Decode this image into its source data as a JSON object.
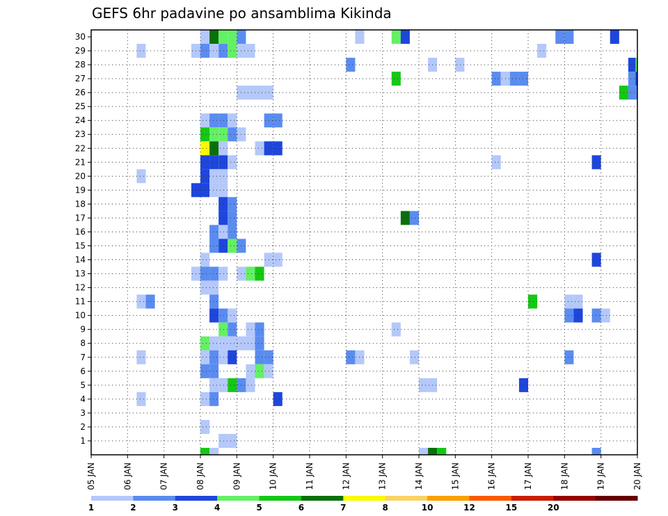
{
  "chart_data": {
    "type": "heatmap",
    "title": "GEFS 6hr padavine po ansamblima Kikinda",
    "xlabel": "",
    "ylabel": "",
    "x_tick_labels": [
      "05 JAN",
      "06 JAN",
      "07 JAN",
      "08 JAN",
      "09 JAN",
      "10 JAN",
      "11 JAN",
      "12 JAN",
      "13 JAN",
      "14 JAN",
      "15 JAN",
      "16 JAN",
      "17 JAN",
      "18 JAN",
      "19 JAN",
      "20 JAN"
    ],
    "y_tick_labels": [
      "1",
      "2",
      "3",
      "4",
      "5",
      "6",
      "7",
      "8",
      "9",
      "10",
      "11",
      "12",
      "13",
      "14",
      "15",
      "16",
      "17",
      "18",
      "19",
      "20",
      "21",
      "22",
      "23",
      "24",
      "25",
      "26",
      "27",
      "28",
      "29",
      "30"
    ],
    "members": [
      0,
      1,
      2,
      3,
      4,
      5,
      6,
      7,
      8,
      9,
      10,
      11,
      12,
      13,
      14,
      15,
      16,
      17,
      18,
      19,
      20,
      21,
      22,
      23,
      24,
      25,
      26,
      27,
      28,
      29,
      30
    ],
    "x_range_days": [
      0,
      15
    ],
    "grid": true,
    "colorbar": {
      "labels": [
        "1",
        "2",
        "3",
        "4",
        "5",
        "6",
        "7",
        "8",
        "10",
        "12",
        "15",
        "20"
      ],
      "colors": [
        "#b4c8fa",
        "#5a8cf0",
        "#1e46dc",
        "#64f064",
        "#14c814",
        "#0a700a",
        "#fafa00",
        "#fad264",
        "#faa000",
        "#fa5a00",
        "#c81e00",
        "#960000",
        "#640000"
      ]
    },
    "cells": [
      {
        "member": 30,
        "day": 3.0,
        "cls": 1
      },
      {
        "member": 30,
        "day": 3.25,
        "cls": 6
      },
      {
        "member": 30,
        "day": 3.5,
        "cls": 4
      },
      {
        "member": 30,
        "day": 3.75,
        "cls": 4
      },
      {
        "member": 30,
        "day": 4.0,
        "cls": 2
      },
      {
        "member": 30,
        "day": 7.25,
        "cls": 1
      },
      {
        "member": 30,
        "day": 8.25,
        "cls": 4
      },
      {
        "member": 30,
        "day": 8.5,
        "cls": 3
      },
      {
        "member": 30,
        "day": 12.75,
        "cls": 2
      },
      {
        "member": 30,
        "day": 13.0,
        "cls": 2
      },
      {
        "member": 30,
        "day": 14.25,
        "cls": 3
      },
      {
        "member": 29,
        "day": 1.25,
        "cls": 1
      },
      {
        "member": 29,
        "day": 2.75,
        "cls": 1
      },
      {
        "member": 29,
        "day": 3.0,
        "cls": 2
      },
      {
        "member": 29,
        "day": 3.25,
        "cls": 1
      },
      {
        "member": 29,
        "day": 3.5,
        "cls": 2
      },
      {
        "member": 29,
        "day": 3.75,
        "cls": 4
      },
      {
        "member": 29,
        "day": 4.0,
        "cls": 1
      },
      {
        "member": 29,
        "day": 4.25,
        "cls": 1
      },
      {
        "member": 29,
        "day": 12.25,
        "cls": 1
      },
      {
        "member": 28,
        "day": 7.0,
        "cls": 2
      },
      {
        "member": 28,
        "day": 9.25,
        "cls": 1
      },
      {
        "member": 28,
        "day": 10.0,
        "cls": 1
      },
      {
        "member": 28,
        "day": 14.75,
        "cls": 3
      },
      {
        "member": 28,
        "day": 14.95,
        "cls": 4
      },
      {
        "member": 27,
        "day": 8.25,
        "cls": 5
      },
      {
        "member": 27,
        "day": 11.0,
        "cls": 2
      },
      {
        "member": 27,
        "day": 11.25,
        "cls": 1
      },
      {
        "member": 27,
        "day": 11.5,
        "cls": 2
      },
      {
        "member": 27,
        "day": 11.75,
        "cls": 2
      },
      {
        "member": 27,
        "day": 14.75,
        "cls": 2
      },
      {
        "member": 27,
        "day": 14.95,
        "cls": 3
      },
      {
        "member": 26,
        "day": 4.0,
        "cls": 1
      },
      {
        "member": 26,
        "day": 4.25,
        "cls": 1
      },
      {
        "member": 26,
        "day": 4.5,
        "cls": 1
      },
      {
        "member": 26,
        "day": 4.75,
        "cls": 1
      },
      {
        "member": 26,
        "day": 14.5,
        "cls": 5
      },
      {
        "member": 26,
        "day": 14.75,
        "cls": 2
      },
      {
        "member": 24,
        "day": 3.0,
        "cls": 1
      },
      {
        "member": 24,
        "day": 3.25,
        "cls": 2
      },
      {
        "member": 24,
        "day": 3.5,
        "cls": 2
      },
      {
        "member": 24,
        "day": 3.75,
        "cls": 1
      },
      {
        "member": 24,
        "day": 4.75,
        "cls": 2
      },
      {
        "member": 24,
        "day": 5.0,
        "cls": 2
      },
      {
        "member": 23,
        "day": 3.0,
        "cls": 5
      },
      {
        "member": 23,
        "day": 3.25,
        "cls": 4
      },
      {
        "member": 23,
        "day": 3.5,
        "cls": 4
      },
      {
        "member": 23,
        "day": 3.75,
        "cls": 2
      },
      {
        "member": 23,
        "day": 4.0,
        "cls": 1
      },
      {
        "member": 22,
        "day": 3.0,
        "cls": 7
      },
      {
        "member": 22,
        "day": 3.25,
        "cls": 6
      },
      {
        "member": 22,
        "day": 3.5,
        "cls": 1
      },
      {
        "member": 22,
        "day": 4.5,
        "cls": 1
      },
      {
        "member": 22,
        "day": 4.75,
        "cls": 3
      },
      {
        "member": 22,
        "day": 5.0,
        "cls": 3
      },
      {
        "member": 21,
        "day": 3.0,
        "cls": 3
      },
      {
        "member": 21,
        "day": 3.25,
        "cls": 3
      },
      {
        "member": 21,
        "day": 3.5,
        "cls": 3
      },
      {
        "member": 21,
        "day": 3.75,
        "cls": 1
      },
      {
        "member": 21,
        "day": 11.0,
        "cls": 1
      },
      {
        "member": 21,
        "day": 13.75,
        "cls": 3
      },
      {
        "member": 20,
        "day": 1.25,
        "cls": 1
      },
      {
        "member": 20,
        "day": 3.0,
        "cls": 3
      },
      {
        "member": 20,
        "day": 3.25,
        "cls": 1
      },
      {
        "member": 20,
        "day": 3.5,
        "cls": 1
      },
      {
        "member": 19,
        "day": 2.75,
        "cls": 3
      },
      {
        "member": 19,
        "day": 3.0,
        "cls": 3
      },
      {
        "member": 19,
        "day": 3.25,
        "cls": 1
      },
      {
        "member": 19,
        "day": 3.5,
        "cls": 1
      },
      {
        "member": 18,
        "day": 3.5,
        "cls": 3
      },
      {
        "member": 18,
        "day": 3.75,
        "cls": 2
      },
      {
        "member": 17,
        "day": 3.5,
        "cls": 3
      },
      {
        "member": 17,
        "day": 3.75,
        "cls": 2
      },
      {
        "member": 17,
        "day": 8.5,
        "cls": 6
      },
      {
        "member": 17,
        "day": 8.75,
        "cls": 2
      },
      {
        "member": 16,
        "day": 3.25,
        "cls": 2
      },
      {
        "member": 16,
        "day": 3.5,
        "cls": 1
      },
      {
        "member": 16,
        "day": 3.75,
        "cls": 2
      },
      {
        "member": 15,
        "day": 3.25,
        "cls": 2
      },
      {
        "member": 15,
        "day": 3.5,
        "cls": 3
      },
      {
        "member": 15,
        "day": 3.75,
        "cls": 4
      },
      {
        "member": 15,
        "day": 4.0,
        "cls": 2
      },
      {
        "member": 14,
        "day": 3.0,
        "cls": 1
      },
      {
        "member": 14,
        "day": 4.75,
        "cls": 1
      },
      {
        "member": 14,
        "day": 5.0,
        "cls": 1
      },
      {
        "member": 14,
        "day": 13.75,
        "cls": 3
      },
      {
        "member": 13,
        "day": 2.75,
        "cls": 1
      },
      {
        "member": 13,
        "day": 3.0,
        "cls": 2
      },
      {
        "member": 13,
        "day": 3.25,
        "cls": 2
      },
      {
        "member": 13,
        "day": 3.5,
        "cls": 1
      },
      {
        "member": 13,
        "day": 4.0,
        "cls": 1
      },
      {
        "member": 13,
        "day": 4.25,
        "cls": 4
      },
      {
        "member": 13,
        "day": 4.5,
        "cls": 5
      },
      {
        "member": 12,
        "day": 3.0,
        "cls": 1
      },
      {
        "member": 12,
        "day": 3.25,
        "cls": 1
      },
      {
        "member": 11,
        "day": 1.25,
        "cls": 1
      },
      {
        "member": 11,
        "day": 1.5,
        "cls": 2
      },
      {
        "member": 11,
        "day": 3.25,
        "cls": 2
      },
      {
        "member": 11,
        "day": 12.0,
        "cls": 5
      },
      {
        "member": 11,
        "day": 13.0,
        "cls": 1
      },
      {
        "member": 11,
        "day": 13.25,
        "cls": 1
      },
      {
        "member": 10,
        "day": 3.25,
        "cls": 3
      },
      {
        "member": 10,
        "day": 3.5,
        "cls": 2
      },
      {
        "member": 10,
        "day": 3.75,
        "cls": 1
      },
      {
        "member": 10,
        "day": 13.0,
        "cls": 2
      },
      {
        "member": 10,
        "day": 13.25,
        "cls": 3
      },
      {
        "member": 10,
        "day": 13.75,
        "cls": 2
      },
      {
        "member": 10,
        "day": 14.0,
        "cls": 1
      },
      {
        "member": 9,
        "day": 3.5,
        "cls": 4
      },
      {
        "member": 9,
        "day": 3.75,
        "cls": 2
      },
      {
        "member": 9,
        "day": 4.25,
        "cls": 1
      },
      {
        "member": 9,
        "day": 4.5,
        "cls": 2
      },
      {
        "member": 9,
        "day": 8.25,
        "cls": 1
      },
      {
        "member": 8,
        "day": 3.0,
        "cls": 4
      },
      {
        "member": 8,
        "day": 3.25,
        "cls": 1
      },
      {
        "member": 8,
        "day": 3.5,
        "cls": 1
      },
      {
        "member": 8,
        "day": 3.75,
        "cls": 1
      },
      {
        "member": 8,
        "day": 4.0,
        "cls": 1
      },
      {
        "member": 8,
        "day": 4.25,
        "cls": 1
      },
      {
        "member": 8,
        "day": 4.5,
        "cls": 2
      },
      {
        "member": 7,
        "day": 1.25,
        "cls": 1
      },
      {
        "member": 7,
        "day": 3.0,
        "cls": 1
      },
      {
        "member": 7,
        "day": 3.25,
        "cls": 2
      },
      {
        "member": 7,
        "day": 3.5,
        "cls": 1
      },
      {
        "member": 7,
        "day": 3.75,
        "cls": 3
      },
      {
        "member": 7,
        "day": 4.5,
        "cls": 2
      },
      {
        "member": 7,
        "day": 4.75,
        "cls": 2
      },
      {
        "member": 7,
        "day": 7.0,
        "cls": 2
      },
      {
        "member": 7,
        "day": 7.25,
        "cls": 1
      },
      {
        "member": 7,
        "day": 8.75,
        "cls": 1
      },
      {
        "member": 7,
        "day": 13.0,
        "cls": 2
      },
      {
        "member": 6,
        "day": 3.0,
        "cls": 2
      },
      {
        "member": 6,
        "day": 3.25,
        "cls": 2
      },
      {
        "member": 6,
        "day": 4.25,
        "cls": 1
      },
      {
        "member": 6,
        "day": 4.5,
        "cls": 4
      },
      {
        "member": 6,
        "day": 4.75,
        "cls": 1
      },
      {
        "member": 5,
        "day": 3.25,
        "cls": 1
      },
      {
        "member": 5,
        "day": 3.5,
        "cls": 1
      },
      {
        "member": 5,
        "day": 3.75,
        "cls": 5
      },
      {
        "member": 5,
        "day": 4.0,
        "cls": 2
      },
      {
        "member": 5,
        "day": 4.25,
        "cls": 1
      },
      {
        "member": 5,
        "day": 9.0,
        "cls": 1
      },
      {
        "member": 5,
        "day": 9.25,
        "cls": 1
      },
      {
        "member": 5,
        "day": 11.75,
        "cls": 3
      },
      {
        "member": 4,
        "day": 1.25,
        "cls": 1
      },
      {
        "member": 4,
        "day": 3.0,
        "cls": 1
      },
      {
        "member": 4,
        "day": 3.25,
        "cls": 2
      },
      {
        "member": 4,
        "day": 5.0,
        "cls": 3
      },
      {
        "member": 2,
        "day": 3.0,
        "cls": 1
      },
      {
        "member": 1,
        "day": 3.5,
        "cls": 1
      },
      {
        "member": 1,
        "day": 3.75,
        "cls": 1
      },
      {
        "member": 0,
        "day": 3.0,
        "cls": 5
      },
      {
        "member": 0,
        "day": 3.25,
        "cls": 1
      },
      {
        "member": 0,
        "day": 9.0,
        "cls": 1
      },
      {
        "member": 0,
        "day": 9.25,
        "cls": 6
      },
      {
        "member": 0,
        "day": 9.5,
        "cls": 5
      },
      {
        "member": 0,
        "day": 13.75,
        "cls": 2
      }
    ]
  }
}
